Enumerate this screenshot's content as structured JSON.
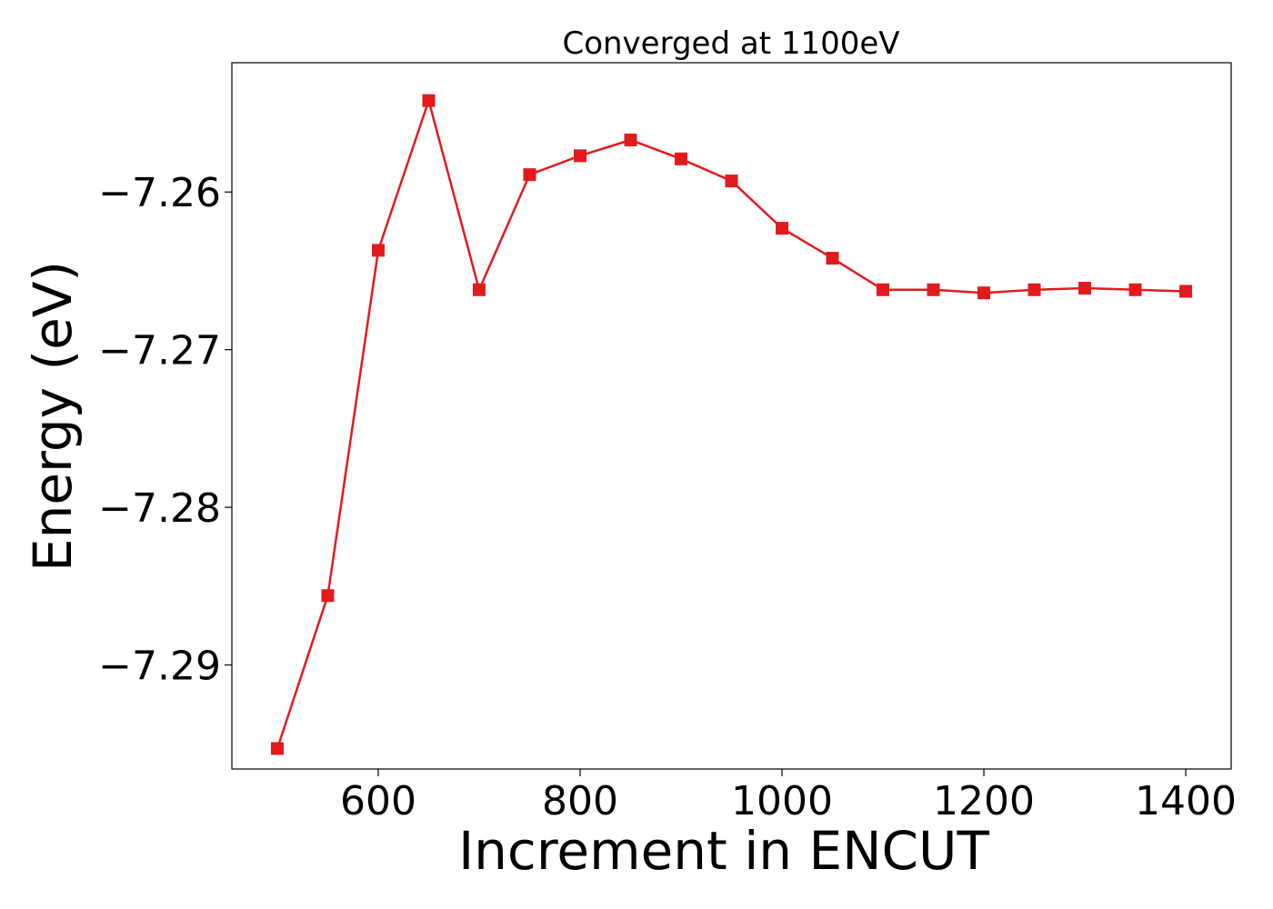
{
  "chart_data": {
    "type": "line",
    "title": "Converged at 1100eV",
    "xlabel": "Increment in ENCUT",
    "ylabel": "Energy (eV)",
    "xlim": [
      455,
      1445
    ],
    "ylim": [
      -7.2966,
      -7.2518
    ],
    "xticks": [
      600,
      800,
      1000,
      1200,
      1400
    ],
    "xtick_labels": [
      "600",
      "800",
      "1000",
      "1200",
      "1400"
    ],
    "yticks": [
      -7.26,
      -7.27,
      -7.28,
      -7.29
    ],
    "ytick_labels": [
      "−7.26",
      "−7.27",
      "−7.28",
      "−7.29"
    ],
    "grid": false,
    "series": [
      {
        "color": "#e31a1c",
        "marker": "square",
        "x": [
          500,
          550,
          600,
          650,
          700,
          750,
          800,
          850,
          900,
          950,
          1000,
          1050,
          1100,
          1150,
          1200,
          1250,
          1300,
          1350,
          1400
        ],
        "y": [
          -7.2953,
          -7.2856,
          -7.2637,
          -7.2542,
          -7.2662,
          -7.2589,
          -7.2577,
          -7.2567,
          -7.2579,
          -7.2593,
          -7.2623,
          -7.2642,
          -7.2662,
          -7.2662,
          -7.2664,
          -7.2662,
          -7.2661,
          -7.2662,
          -7.2663
        ]
      }
    ]
  }
}
